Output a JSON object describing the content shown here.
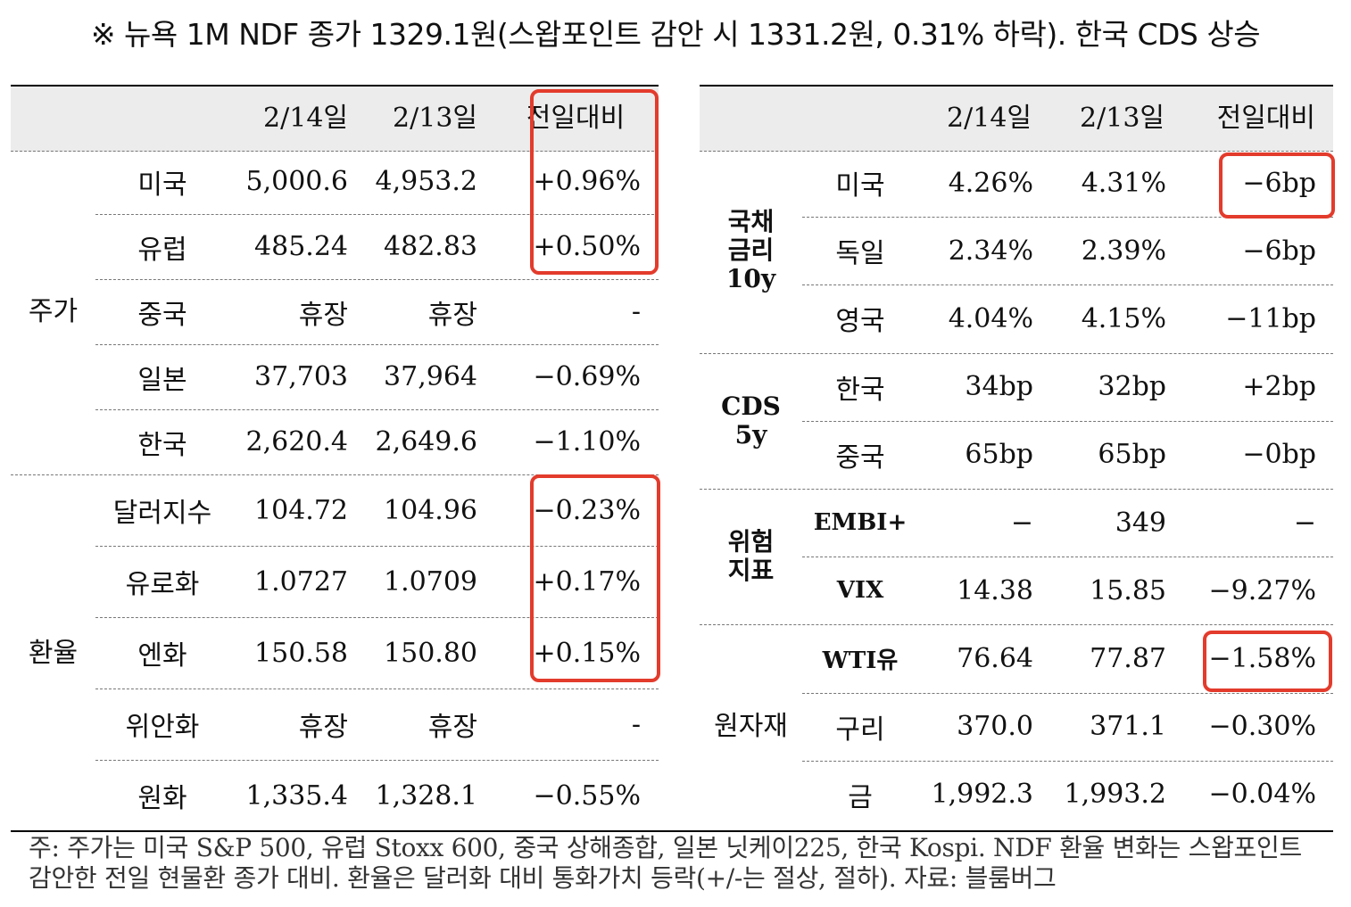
{
  "title": "※ 뉴욕 1M NDF 종가 1329.1원(스왑포인트 감안 시 1331.2원, 0.31% 하락). 한국 CDS 상승",
  "left": {
    "headers": [
      "2/14일",
      "2/13일",
      "전일대비"
    ],
    "groups": [
      {
        "label": "주가",
        "rows": [
          {
            "name": "미국",
            "d1": "5,000.6",
            "d2": "4,953.2",
            "chg": "+0.96%"
          },
          {
            "name": "유럽",
            "d1": "485.24",
            "d2": "482.83",
            "chg": "+0.50%"
          },
          {
            "name": "중국",
            "d1": "휴장",
            "d2": "휴장",
            "chg": "-"
          },
          {
            "name": "일본",
            "d1": "37,703",
            "d2": "37,964",
            "chg": "−0.69%"
          },
          {
            "name": "한국",
            "d1": "2,620.4",
            "d2": "2,649.6",
            "chg": "−1.10%"
          }
        ]
      },
      {
        "label": "환율",
        "rows": [
          {
            "name": "달러지수",
            "d1": "104.72",
            "d2": "104.96",
            "chg": "−0.23%"
          },
          {
            "name": "유로화",
            "d1": "1.0727",
            "d2": "1.0709",
            "chg": "+0.17%"
          },
          {
            "name": "엔화",
            "d1": "150.58",
            "d2": "150.80",
            "chg": "+0.15%"
          },
          {
            "name": "위안화",
            "d1": "휴장",
            "d2": "휴장",
            "chg": "-"
          },
          {
            "name": "원화",
            "d1": "1,335.4",
            "d2": "1,328.1",
            "chg": "−0.55%"
          }
        ]
      }
    ]
  },
  "right": {
    "headers": [
      "2/14일",
      "2/13일",
      "전일대비"
    ],
    "groups": [
      {
        "label": [
          "국채",
          "금리",
          "10y"
        ],
        "rows": [
          {
            "name": "미국",
            "d1": "4.26%",
            "d2": "4.31%",
            "chg": "−6bp"
          },
          {
            "name": "독일",
            "d1": "2.34%",
            "d2": "2.39%",
            "chg": "−6bp"
          },
          {
            "name": "영국",
            "d1": "4.04%",
            "d2": "4.15%",
            "chg": "−11bp"
          }
        ]
      },
      {
        "label": [
          "CDS",
          "5y"
        ],
        "rows": [
          {
            "name": "한국",
            "d1": "34bp",
            "d2": "32bp",
            "chg": "+2bp"
          },
          {
            "name": "중국",
            "d1": "65bp",
            "d2": "65bp",
            "chg": "−0bp"
          }
        ]
      },
      {
        "label": [
          "위험",
          "지표"
        ],
        "rows": [
          {
            "name": "EMBI+",
            "d1": "−",
            "d2": "349",
            "chg": "−"
          },
          {
            "name": "VIX",
            "d1": "14.38",
            "d2": "15.85",
            "chg": "−9.27%"
          }
        ]
      },
      {
        "label": [
          "원자재"
        ],
        "rows": [
          {
            "name": "WTI유",
            "d1": "76.64",
            "d2": "77.87",
            "chg": "−1.58%"
          },
          {
            "name": "구리",
            "d1": "370.0",
            "d2": "371.1",
            "chg": "−0.30%"
          },
          {
            "name": "금",
            "d1": "1,992.3",
            "d2": "1,993.2",
            "chg": "−0.04%"
          }
        ]
      }
    ]
  },
  "footnote": [
    "주: 주가는 미국 S&P 500, 유럽 Stoxx 600, 중국 상해종합, 일본 닛케이225, 한국 Kospi. NDF 환율 변화는 스왑포인트",
    "감안한 전일 현물환 종가 대비. 환율은 달러화 대비 통화가치 등락(+/-는 절상, 절하). 자료: 블룸버그"
  ],
  "highlight_color": "#e33b2c"
}
